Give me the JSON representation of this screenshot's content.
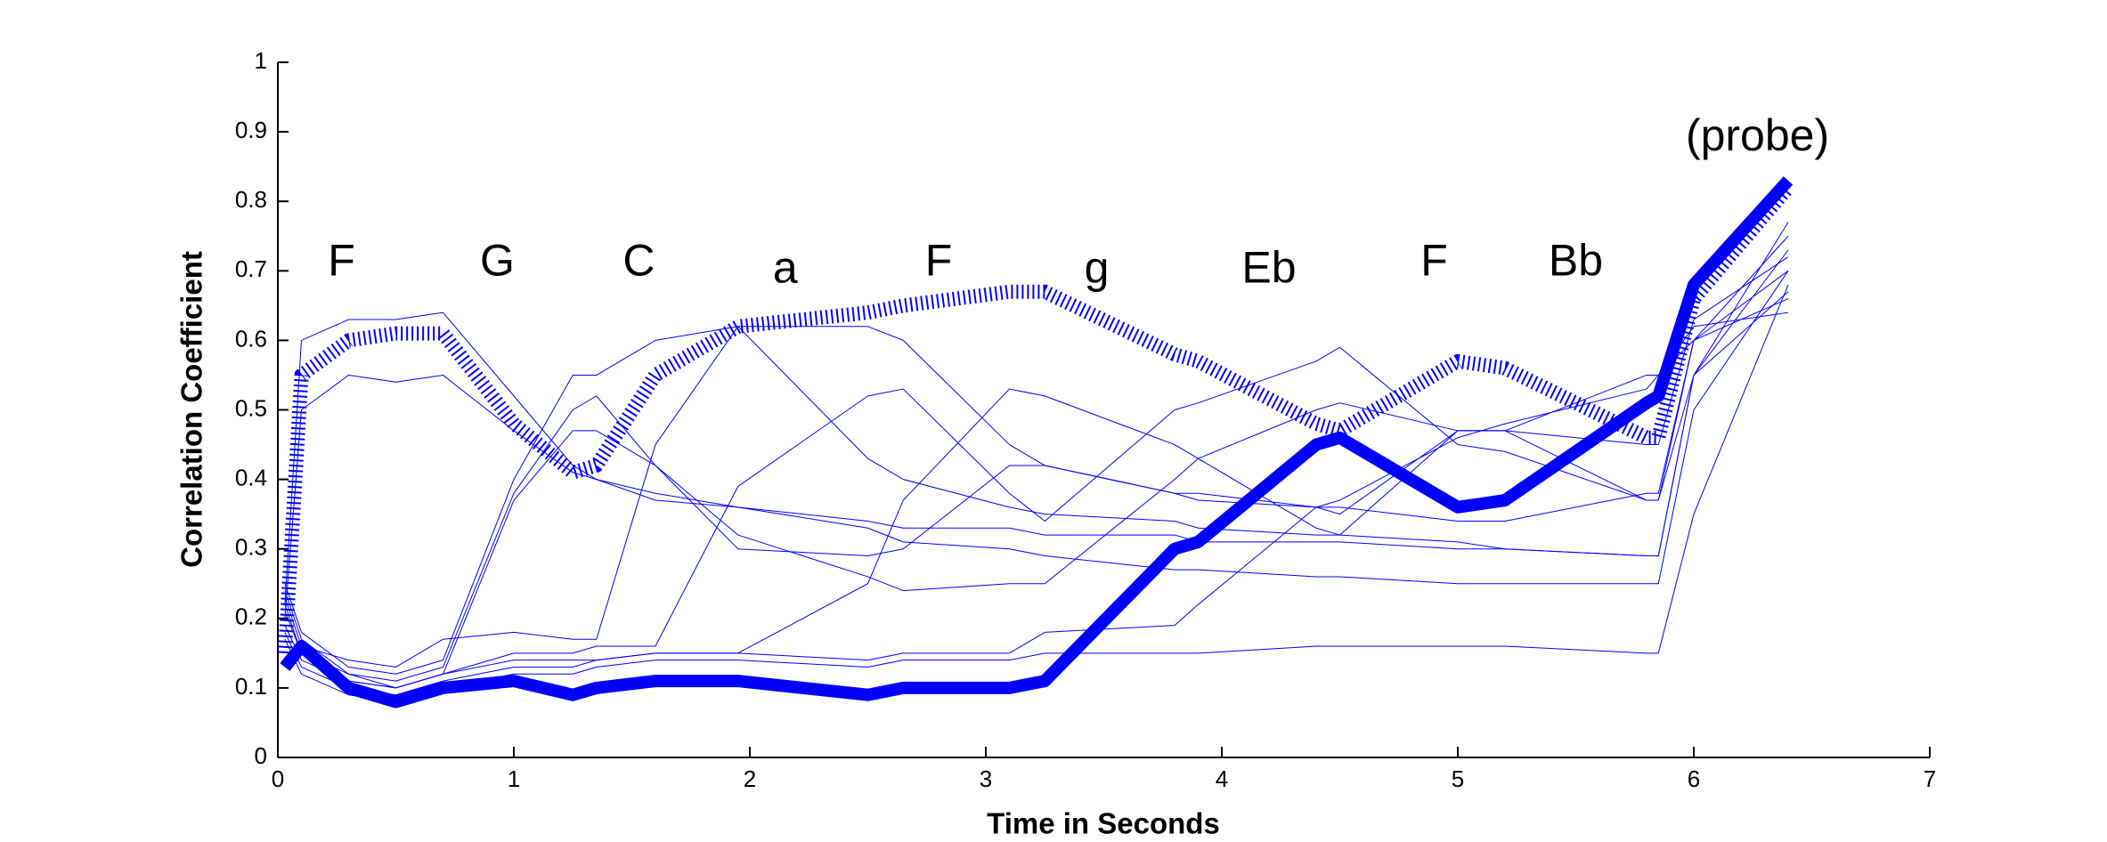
{
  "chart_data": {
    "type": "line",
    "xlabel": "Time in Seconds",
    "ylabel": "Correlation Coefficient",
    "annotations": [
      "F",
      "G",
      "C",
      "a",
      "F",
      "g",
      "Eb",
      "F",
      "Bb",
      "(probe)"
    ],
    "x": [
      0.03,
      0.1,
      0.3,
      0.5,
      0.7,
      1.0,
      1.25,
      1.35,
      1.6,
      1.95,
      2.5,
      2.65,
      3.1,
      3.25,
      3.8,
      3.9,
      4.4,
      4.5,
      5.0,
      5.2,
      5.8,
      5.85,
      6.0,
      6.4
    ],
    "xlim": [
      0,
      7
    ],
    "xticks": [
      0,
      1,
      2,
      3,
      4,
      5,
      6,
      7
    ],
    "ylim": [
      0,
      1
    ],
    "yticks": [
      0,
      0.1,
      0.2,
      0.3,
      0.4,
      0.5,
      0.6,
      0.7,
      0.8,
      0.9,
      1
    ],
    "series": [
      {
        "color": "#0000ff",
        "width": 1,
        "values": [
          0.22,
          0.6,
          0.63,
          0.63,
          0.64,
          0.52,
          0.42,
          0.4,
          0.37,
          0.36,
          0.33,
          0.31,
          0.3,
          0.29,
          0.27,
          0.27,
          0.26,
          0.26,
          0.25,
          0.25,
          0.25,
          0.25,
          0.5,
          0.7
        ]
      },
      {
        "color": "#0000ff",
        "width": 1,
        "values": [
          0.2,
          0.5,
          0.55,
          0.54,
          0.55,
          0.47,
          0.41,
          0.4,
          0.38,
          0.36,
          0.34,
          0.33,
          0.33,
          0.32,
          0.32,
          0.31,
          0.31,
          0.31,
          0.3,
          0.3,
          0.29,
          0.29,
          0.55,
          0.73
        ]
      },
      {
        "color": "#0000ff",
        "width": 1,
        "values": [
          0.25,
          0.18,
          0.13,
          0.12,
          0.14,
          0.4,
          0.55,
          0.55,
          0.6,
          0.62,
          0.43,
          0.4,
          0.36,
          0.35,
          0.34,
          0.33,
          0.32,
          0.32,
          0.31,
          0.3,
          0.29,
          0.29,
          0.55,
          0.77
        ]
      },
      {
        "color": "#0000ff",
        "width": 1,
        "values": [
          0.24,
          0.17,
          0.12,
          0.11,
          0.13,
          0.38,
          0.5,
          0.52,
          0.42,
          0.32,
          0.26,
          0.24,
          0.25,
          0.25,
          0.4,
          0.43,
          0.5,
          0.51,
          0.47,
          0.47,
          0.37,
          0.37,
          0.6,
          0.75
        ]
      },
      {
        "color": "#0000ff",
        "width": 1,
        "values": [
          0.22,
          0.15,
          0.11,
          0.1,
          0.12,
          0.37,
          0.47,
          0.47,
          0.42,
          0.3,
          0.29,
          0.3,
          0.42,
          0.42,
          0.38,
          0.38,
          0.36,
          0.35,
          0.47,
          0.47,
          0.45,
          0.45,
          0.63,
          0.72
        ]
      },
      {
        "color": "#0000ff",
        "width": 1,
        "values": [
          0.23,
          0.16,
          0.14,
          0.13,
          0.17,
          0.18,
          0.17,
          0.17,
          0.45,
          0.62,
          0.62,
          0.6,
          0.45,
          0.42,
          0.38,
          0.37,
          0.36,
          0.36,
          0.34,
          0.34,
          0.38,
          0.38,
          0.6,
          0.7
        ]
      },
      {
        "color": "#0000ff",
        "width": 1,
        "values": [
          0.21,
          0.15,
          0.12,
          0.1,
          0.12,
          0.15,
          0.15,
          0.16,
          0.16,
          0.39,
          0.52,
          0.53,
          0.38,
          0.34,
          0.5,
          0.51,
          0.57,
          0.59,
          0.45,
          0.44,
          0.37,
          0.37,
          0.55,
          0.67
        ]
      },
      {
        "color": "#0000ff",
        "width": 1,
        "values": [
          0.19,
          0.14,
          0.11,
          0.1,
          0.12,
          0.14,
          0.14,
          0.14,
          0.15,
          0.15,
          0.25,
          0.37,
          0.53,
          0.52,
          0.45,
          0.43,
          0.33,
          0.32,
          0.47,
          0.47,
          0.55,
          0.55,
          0.6,
          0.66
        ]
      },
      {
        "color": "#0000ff",
        "width": 1,
        "values": [
          0.18,
          0.13,
          0.1,
          0.09,
          0.11,
          0.13,
          0.13,
          0.14,
          0.15,
          0.15,
          0.14,
          0.15,
          0.15,
          0.18,
          0.19,
          0.22,
          0.36,
          0.37,
          0.46,
          0.48,
          0.53,
          0.55,
          0.62,
          0.64
        ]
      },
      {
        "color": "#0000ff",
        "width": 1,
        "values": [
          0.17,
          0.12,
          0.09,
          0.08,
          0.1,
          0.12,
          0.12,
          0.13,
          0.14,
          0.14,
          0.13,
          0.14,
          0.14,
          0.15,
          0.15,
          0.15,
          0.16,
          0.16,
          0.16,
          0.16,
          0.15,
          0.15,
          0.35,
          0.68
        ]
      },
      {
        "color": "#0000ff",
        "width": 16,
        "dashed": true,
        "values": [
          0.15,
          0.55,
          0.6,
          0.61,
          0.61,
          0.48,
          0.41,
          0.42,
          0.55,
          0.62,
          0.64,
          0.65,
          0.67,
          0.67,
          0.58,
          0.57,
          0.48,
          0.47,
          0.57,
          0.56,
          0.46,
          0.46,
          0.66,
          0.82
        ]
      },
      {
        "color": "#0000ff",
        "width": 14,
        "values": [
          0.13,
          0.16,
          0.1,
          0.08,
          0.1,
          0.11,
          0.09,
          0.1,
          0.11,
          0.11,
          0.09,
          0.1,
          0.1,
          0.11,
          0.3,
          0.31,
          0.45,
          0.46,
          0.36,
          0.37,
          0.51,
          0.52,
          0.68,
          0.83
        ]
      }
    ]
  }
}
